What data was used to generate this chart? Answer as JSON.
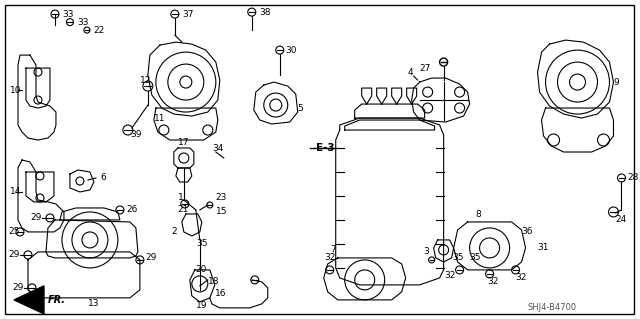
{
  "fig_width": 6.4,
  "fig_height": 3.19,
  "dpi": 100,
  "background_color": "#ffffff",
  "border_color": "#000000",
  "watermark": "SHJ4-B4700",
  "text_color": "#000000",
  "gray_color": "#666666",
  "light_gray": "#999999"
}
